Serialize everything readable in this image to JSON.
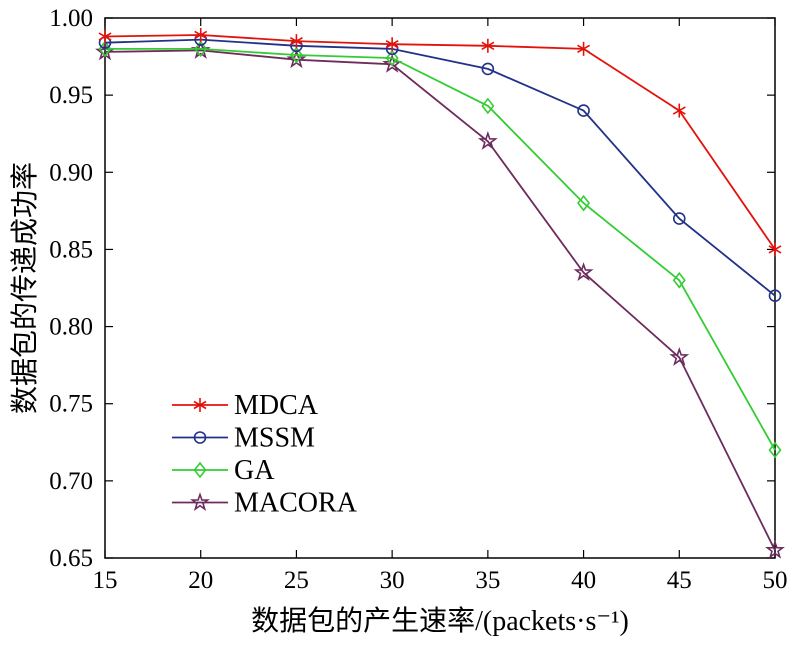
{
  "chart_data": {
    "type": "line",
    "title": "",
    "xlabel": "数据包的产生速率/(packets·s⁻¹)",
    "ylabel": "数据包的传递成功率",
    "x": [
      15,
      20,
      25,
      30,
      35,
      40,
      45,
      50
    ],
    "xlim": [
      15,
      50
    ],
    "ylim": [
      0.65,
      1.0
    ],
    "xticks": [
      15,
      20,
      25,
      30,
      35,
      40,
      45,
      50
    ],
    "yticks": [
      0.65,
      0.7,
      0.75,
      0.8,
      0.85,
      0.9,
      0.95,
      1.0
    ],
    "grid": false,
    "legend_position": "lower-left-inside",
    "axis_color": "#000000",
    "series": [
      {
        "name": "MDCA",
        "color": "#e3120b",
        "marker": "asterisk",
        "values": [
          0.988,
          0.989,
          0.985,
          0.983,
          0.982,
          0.98,
          0.94,
          0.85
        ]
      },
      {
        "name": "MSSM",
        "color": "#223289",
        "marker": "circle",
        "values": [
          0.984,
          0.986,
          0.982,
          0.98,
          0.967,
          0.94,
          0.87,
          0.82
        ]
      },
      {
        "name": "GA",
        "color": "#33cc33",
        "marker": "diamond",
        "values": [
          0.98,
          0.98,
          0.976,
          0.974,
          0.943,
          0.88,
          0.83,
          0.72
        ]
      },
      {
        "name": "MACORA",
        "color": "#6d2c5e",
        "marker": "star5",
        "values": [
          0.978,
          0.979,
          0.973,
          0.97,
          0.92,
          0.835,
          0.78,
          0.655
        ]
      }
    ]
  }
}
